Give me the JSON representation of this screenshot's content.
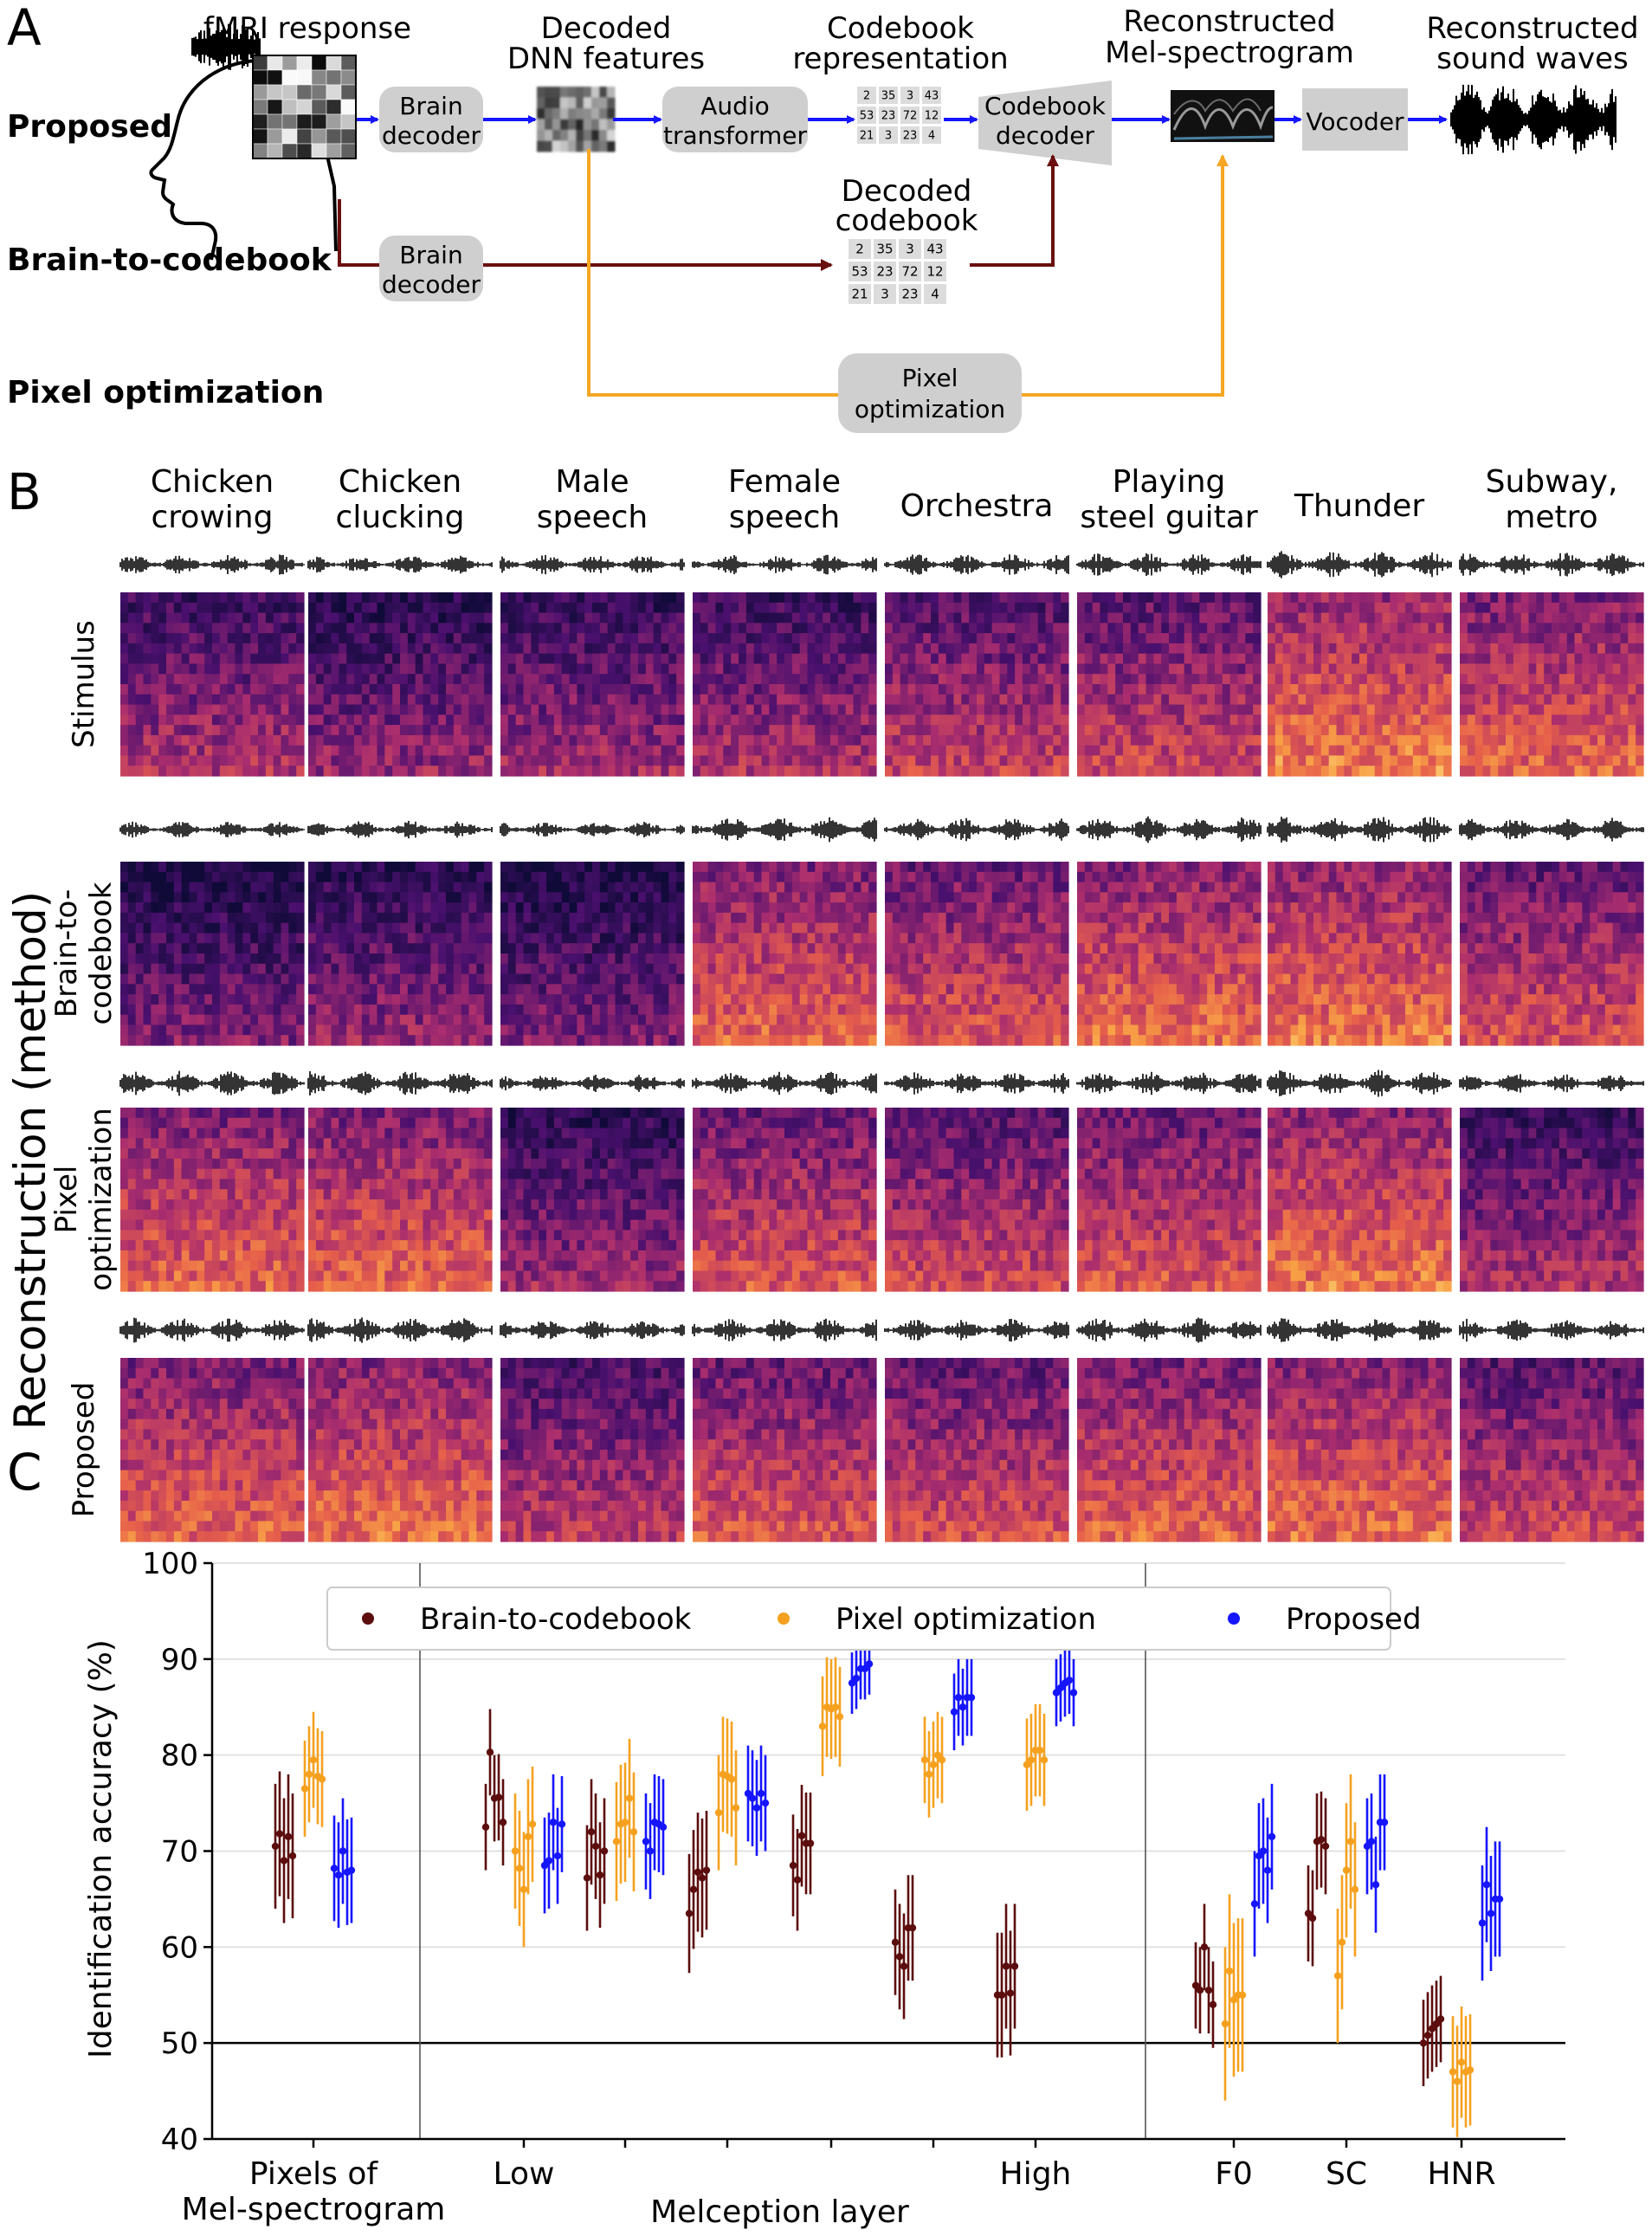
{
  "panel_a": {
    "letter": "A",
    "row_labels": [
      "Proposed",
      "Brain-to-codebook",
      "Pixel optimization"
    ],
    "heads": {
      "fmri": "fMRI response",
      "decoded_dnn": [
        "Decoded",
        "DNN features"
      ],
      "codebook_rep": [
        "Codebook",
        "representation"
      ],
      "recon_mel": [
        "Reconstructed",
        "Mel-spectrogram"
      ],
      "recon_sound": [
        "Reconstructed",
        "sound waves"
      ],
      "decoded_codebook": [
        "Decoded",
        "codebook"
      ]
    },
    "boxes": {
      "brain_decoder": [
        "Brain",
        "decoder"
      ],
      "audio_transformer": [
        "Audio",
        "transformer"
      ],
      "codebook_decoder": [
        "Codebook",
        "decoder"
      ],
      "vocoder": "Vocoder",
      "brain_decoder_2": [
        "Brain",
        "decoder"
      ],
      "pixel_optimization": [
        "Pixel",
        "optimization"
      ]
    },
    "codebook_grid": [
      [
        "2",
        "35",
        "3",
        "43"
      ],
      [
        "53",
        "23",
        "72",
        "12"
      ],
      [
        "21",
        "3",
        "23",
        "4"
      ]
    ],
    "colors": {
      "proposed_arrow": "#1515ff",
      "brain_arrow": "#6b0f0f",
      "pixel_arrow": "#f5a623",
      "box": "#cfcfcf"
    }
  },
  "panel_b": {
    "letter": "B",
    "columns": [
      [
        "Chicken",
        "crowing"
      ],
      [
        "Chicken",
        "clucking"
      ],
      [
        "Male",
        "speech"
      ],
      [
        "Female",
        "speech"
      ],
      [
        "Orchestra"
      ],
      [
        "Playing",
        "steel guitar"
      ],
      [
        "Thunder"
      ],
      [
        "Subway,",
        "metro"
      ]
    ],
    "rows": [
      {
        "key": "stimulus",
        "label": [
          "Stimulus"
        ]
      },
      {
        "key": "brain",
        "label": [
          "Brain-to-",
          "codebook"
        ]
      },
      {
        "key": "pixel",
        "label": [
          "Pixel",
          "optimization"
        ]
      },
      {
        "key": "proposed",
        "label": [
          "Proposed"
        ]
      }
    ],
    "group_label": "Reconstruction (method)"
  },
  "panel_c": {
    "letter": "C",
    "chart_data": {
      "type": "scatter",
      "ylabel": "Identification accuracy (%)",
      "ylim": [
        40,
        100
      ],
      "yticks": [
        40,
        50,
        60,
        70,
        80,
        90,
        100
      ],
      "chance_level": 50,
      "groups": [
        {
          "label": [
            "Pixels of",
            "Mel-spectrogram"
          ]
        },
        {
          "label": [
            "Low"
          ]
        },
        {
          "label": [
            ""
          ]
        },
        {
          "label": [
            ""
          ]
        },
        {
          "label": [
            ""
          ]
        },
        {
          "label": [
            ""
          ]
        },
        {
          "label": [
            "High"
          ]
        },
        {
          "label": [
            "F0"
          ]
        },
        {
          "label": [
            "SC"
          ]
        },
        {
          "label": [
            "HNR"
          ]
        }
      ],
      "xlabel_group": "Melception layer",
      "series": [
        {
          "name": "Brain-to-codebook",
          "color": "#5c0d0d",
          "values": [
            [
              70.5,
              71.8,
              69.0,
              71.5,
              69.5
            ],
            [
              72.5,
              80.3,
              75.5,
              75.6,
              73.0
            ],
            [
              67.2,
              72.0,
              70.5,
              67.5,
              70.0
            ],
            [
              63.5,
              66.0,
              67.8,
              67.2,
              68.0
            ],
            [
              68.5,
              67.0,
              71.6,
              70.8,
              70.8
            ],
            [
              60.5,
              59.0,
              58.0,
              62.0,
              62.0
            ],
            [
              55.0,
              55.0,
              58.0,
              55.2,
              58.0
            ],
            [
              56.0,
              55.5,
              60.0,
              55.5,
              54.0
            ],
            [
              63.5,
              63.0,
              71.0,
              71.2,
              70.5
            ],
            [
              50.0,
              50.8,
              51.5,
              52.0,
              52.5
            ]
          ],
          "errors": [
            6.5,
            4.5,
            5.5,
            6.2,
            5.3,
            5.5,
            6.5,
            4.5,
            5.0,
            4.5
          ]
        },
        {
          "name": "Pixel optimization",
          "color": "#f5a11f",
          "values": [
            [
              76.5,
              78.0,
              79.5,
              77.8,
              77.5
            ],
            [
              70.0,
              68.2,
              66.0,
              71.5,
              72.8
            ],
            [
              71.0,
              72.8,
              73.0,
              75.5,
              72.0
            ],
            [
              74.0,
              78.0,
              77.8,
              77.5,
              74.5
            ],
            [
              83.0,
              85.0,
              84.8,
              85.0,
              84.0
            ],
            [
              79.5,
              78.0,
              79.0,
              80.0,
              79.5
            ],
            [
              79.0,
              79.5,
              80.5,
              80.5,
              79.5
            ],
            [
              52.0,
              57.5,
              54.5,
              55.0,
              55.0
            ],
            [
              57.0,
              60.5,
              68.0,
              71.0,
              66.0
            ],
            [
              47.0,
              46.0,
              48.0,
              47.0,
              47.2
            ]
          ],
          "errors": [
            5.0,
            6.0,
            6.2,
            6.0,
            5.2,
            4.5,
            4.8,
            8.0,
            7.0,
            5.8
          ]
        },
        {
          "name": "Proposed",
          "color": "#1515ff",
          "values": [
            [
              68.2,
              67.5,
              70.0,
              67.8,
              68.0
            ],
            [
              68.5,
              69.0,
              73.0,
              69.5,
              72.8
            ],
            [
              71.0,
              70.0,
              73.0,
              72.8,
              72.5
            ],
            [
              76.0,
              75.5,
              74.5,
              76.0,
              75.0
            ],
            [
              87.5,
              88.0,
              89.0,
              89.0,
              89.5
            ],
            [
              84.5,
              86.0,
              85.0,
              86.0,
              86.0
            ],
            [
              86.5,
              87.0,
              87.5,
              87.8,
              86.5
            ],
            [
              64.5,
              69.5,
              70.0,
              68.0,
              71.5
            ],
            [
              70.5,
              71.0,
              66.5,
              73.0,
              73.0
            ],
            [
              62.5,
              66.5,
              63.5,
              65.0,
              65.0
            ]
          ],
          "errors": [
            5.5,
            5.0,
            5.0,
            5.0,
            3.2,
            4.0,
            3.5,
            5.5,
            5.0,
            6.0
          ]
        }
      ]
    }
  }
}
